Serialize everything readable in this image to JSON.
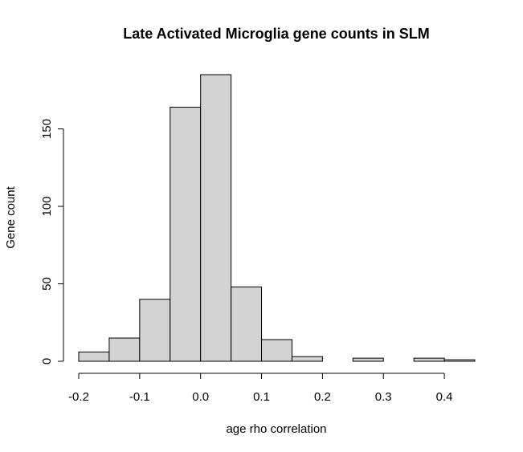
{
  "chart_data": {
    "type": "bar",
    "title": "Late Activated Microglia gene counts in SLM",
    "xlabel": "age rho correlation",
    "ylabel": "Gene count",
    "bins": [
      {
        "x0": -0.2,
        "x1": -0.15,
        "count": 6
      },
      {
        "x0": -0.15,
        "x1": -0.1,
        "count": 15
      },
      {
        "x0": -0.1,
        "x1": -0.05,
        "count": 40
      },
      {
        "x0": -0.05,
        "x1": 0.0,
        "count": 164
      },
      {
        "x0": 0.0,
        "x1": 0.05,
        "count": 185
      },
      {
        "x0": 0.05,
        "x1": 0.1,
        "count": 48
      },
      {
        "x0": 0.1,
        "x1": 0.15,
        "count": 14
      },
      {
        "x0": 0.15,
        "x1": 0.2,
        "count": 3
      },
      {
        "x0": 0.2,
        "x1": 0.25,
        "count": 0
      },
      {
        "x0": 0.25,
        "x1": 0.3,
        "count": 2
      },
      {
        "x0": 0.3,
        "x1": 0.35,
        "count": 0
      },
      {
        "x0": 0.35,
        "x1": 0.4,
        "count": 2
      },
      {
        "x0": 0.4,
        "x1": 0.45,
        "count": 1
      }
    ],
    "x_ticks": [
      -0.2,
      -0.1,
      0.0,
      0.1,
      0.2,
      0.3,
      0.4
    ],
    "x_tick_labels": [
      "-0.2",
      "-0.1",
      "0.0",
      "0.1",
      "0.2",
      "0.3",
      "0.4"
    ],
    "y_ticks": [
      0,
      50,
      100,
      150
    ],
    "y_tick_labels": [
      "0",
      "50",
      "100",
      "150"
    ],
    "xlim": [
      -0.2,
      0.45
    ],
    "ylim": [
      0,
      185
    ],
    "bar_color": "#d3d3d3",
    "grid": false
  }
}
